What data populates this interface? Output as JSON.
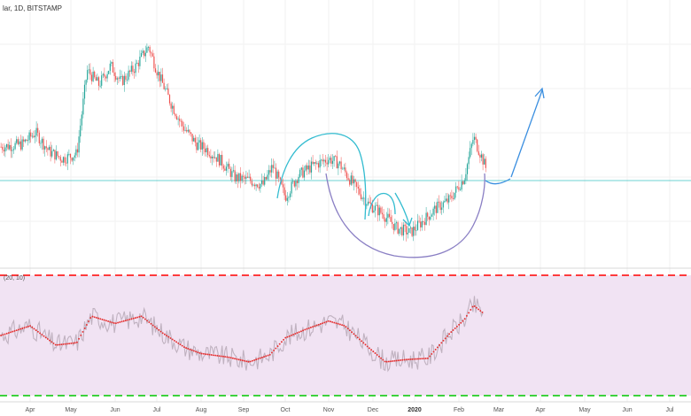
{
  "header": {
    "title": "lar, 1D, BITSTAMP"
  },
  "oscillator": {
    "label": "(20, 10)"
  },
  "colors": {
    "up": "#26a69a",
    "down": "#ef5350",
    "wick_up": "#26a69a",
    "wick_down": "#ef5350",
    "hline": "#3cc5c5",
    "osc_bg": "#f1e3f3",
    "osc_top": "#ff0000",
    "osc_bottom": "#00c800",
    "osc_raw": "#c0b2c0",
    "osc_smooth": "#e52f2f",
    "sketch_cyan": "#33bcd0",
    "sketch_purple": "#8a7fc4",
    "sketch_blue": "#3b8fe0"
  },
  "chart_data": {
    "type": "candlestick",
    "title": "lar, 1D, BITSTAMP",
    "x_tick_labels": [
      "Apr",
      "May",
      "Jun",
      "Jul",
      "Aug",
      "Sep",
      "Oct",
      "Nov",
      "Dec",
      "2020",
      "Feb",
      "Mar",
      "Apr",
      "May",
      "Jun",
      "Jul"
    ],
    "price_series": {
      "name": "price",
      "note": "normalized close trajectory (relative units, 0 = low, 1 = high)",
      "points": [
        [
          "Mar-10",
          0.46
        ],
        [
          "Mar-25",
          0.47
        ],
        [
          "Apr-05",
          0.52
        ],
        [
          "Apr-15",
          0.44
        ],
        [
          "Apr-25",
          0.41
        ],
        [
          "May-05",
          0.43
        ],
        [
          "May-12",
          0.78
        ],
        [
          "May-20",
          0.72
        ],
        [
          "May-28",
          0.8
        ],
        [
          "Jun-05",
          0.73
        ],
        [
          "Jun-15",
          0.79
        ],
        [
          "Jun-25",
          0.88
        ],
        [
          "Jul-01",
          0.78
        ],
        [
          "Jul-10",
          0.65
        ],
        [
          "Jul-18",
          0.55
        ],
        [
          "Jul-28",
          0.47
        ],
        [
          "Aug-05",
          0.45
        ],
        [
          "Aug-15",
          0.4
        ],
        [
          "Aug-25",
          0.33
        ],
        [
          "Sep-05",
          0.32
        ],
        [
          "Sep-15",
          0.3
        ],
        [
          "Sep-22",
          0.38
        ],
        [
          "Oct-01",
          0.25
        ],
        [
          "Oct-10",
          0.34
        ],
        [
          "Oct-20",
          0.38
        ],
        [
          "Nov-01",
          0.41
        ],
        [
          "Nov-08",
          0.39
        ],
        [
          "Nov-18",
          0.3
        ],
        [
          "Nov-28",
          0.22
        ],
        [
          "Dec-08",
          0.18
        ],
        [
          "Dec-18",
          0.12
        ],
        [
          "Dec-28",
          0.1
        ],
        [
          "2020-Jan-05",
          0.14
        ],
        [
          "2020-Jan-15",
          0.2
        ],
        [
          "2020-Jan-25",
          0.24
        ],
        [
          "2020-Feb-05",
          0.33
        ],
        [
          "2020-Feb-12",
          0.5
        ],
        [
          "2020-Feb-18",
          0.42
        ],
        [
          "2020-Feb-22",
          0.36
        ]
      ]
    },
    "oscillator_series": {
      "name": "oscillator",
      "note": "smoothed oscillator trajectory (relative units, 0 = bottom band, 1 = top band)",
      "points": [
        [
          "Mar-10",
          0.5
        ],
        [
          "Apr-01",
          0.58
        ],
        [
          "Apr-20",
          0.42
        ],
        [
          "May-05",
          0.44
        ],
        [
          "May-15",
          0.66
        ],
        [
          "Jun-01",
          0.6
        ],
        [
          "Jun-20",
          0.66
        ],
        [
          "Jul-05",
          0.52
        ],
        [
          "Jul-20",
          0.4
        ],
        [
          "Aug-01",
          0.35
        ],
        [
          "Aug-20",
          0.32
        ],
        [
          "Sep-05",
          0.28
        ],
        [
          "Sep-20",
          0.34
        ],
        [
          "Oct-01",
          0.48
        ],
        [
          "Oct-15",
          0.55
        ],
        [
          "Nov-01",
          0.62
        ],
        [
          "Nov-12",
          0.58
        ],
        [
          "Nov-28",
          0.4
        ],
        [
          "Dec-10",
          0.28
        ],
        [
          "Dec-25",
          0.3
        ],
        [
          "2020-Jan-10",
          0.31
        ],
        [
          "2020-Jan-25",
          0.52
        ],
        [
          "2020-Feb-05",
          0.63
        ],
        [
          "2020-Feb-12",
          0.75
        ],
        [
          "2020-Feb-20",
          0.68
        ]
      ]
    },
    "oscillator_bands": {
      "upper": "dashed red",
      "lower": "dashed green",
      "fill": "pink"
    },
    "grid": true,
    "annotations": [
      "cup-and-handle sketch",
      "upward arrow projection"
    ]
  }
}
